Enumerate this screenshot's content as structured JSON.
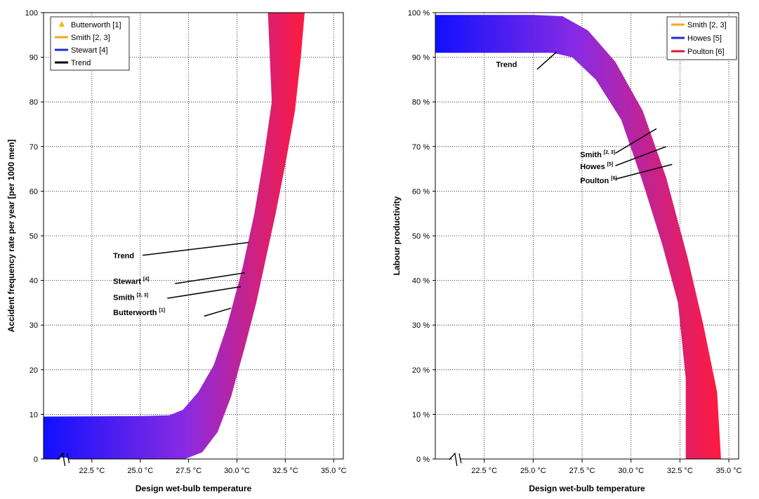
{
  "chart_data": [
    {
      "type": "area",
      "xlabel": "Design wet-bulb temperature",
      "ylabel": "Accident frequency rate per year [per 1000 men]",
      "xlim": [
        20.0,
        35.5
      ],
      "ylim": [
        0,
        100
      ],
      "x_ticks": [
        "22.5 °C",
        "25.0 °C",
        "27.5 °C",
        "30.0 °C",
        "32.5 °C",
        "35.0 °C"
      ],
      "y_ticks": [
        "0",
        "10",
        "20",
        "30",
        "40",
        "50",
        "60",
        "70",
        "80",
        "90",
        "100"
      ],
      "grid": true,
      "axis_break": true,
      "legend": {
        "placement": "top-left",
        "entries": [
          {
            "label": "Butterworth [1]",
            "marker": "triangle",
            "color": "#f2b705"
          },
          {
            "label": "Smith [2, 3]",
            "marker": "line",
            "color": "#f5a623"
          },
          {
            "label": "Stewart [4]",
            "marker": "line",
            "color": "#1f2bd6"
          },
          {
            "label": "Trend",
            "marker": "line",
            "color": "#000000"
          }
        ]
      },
      "band": {
        "color_start": "#1010ff",
        "color_mid": "#8a2be2",
        "color_end": "#ff1a3c",
        "upper": [
          [
            20.0,
            9.5
          ],
          [
            25.0,
            9.6
          ],
          [
            26.5,
            9.8
          ],
          [
            27.2,
            11
          ],
          [
            28.0,
            15
          ],
          [
            28.8,
            21
          ],
          [
            29.5,
            30
          ],
          [
            30.3,
            43
          ],
          [
            30.9,
            55
          ],
          [
            31.4,
            68
          ],
          [
            31.8,
            80
          ],
          [
            31.7,
            90
          ],
          [
            31.6,
            100
          ]
        ],
        "lower": [
          [
            33.5,
            100
          ],
          [
            33.3,
            90
          ],
          [
            33.0,
            78
          ],
          [
            32.5,
            66
          ],
          [
            32.0,
            55
          ],
          [
            31.5,
            45
          ],
          [
            31.0,
            35
          ],
          [
            30.4,
            25
          ],
          [
            29.7,
            14
          ],
          [
            29.0,
            6
          ],
          [
            28.2,
            1.5
          ],
          [
            27.3,
            0
          ],
          [
            20.0,
            0
          ]
        ]
      },
      "annotations": [
        {
          "label": "Trend",
          "sup": "",
          "text_at": [
            23.6,
            45
          ],
          "line_to": [
            30.6,
            48.5
          ]
        },
        {
          "label": "Stewart",
          "sup": "[4]",
          "text_at": [
            23.6,
            39.2
          ],
          "line_from": [
            26.8,
            39.3
          ],
          "line_to": [
            30.4,
            41.7
          ]
        },
        {
          "label": "Smith",
          "sup": "[2, 3]",
          "text_at": [
            23.6,
            35.6
          ],
          "line_from": [
            26.4,
            36.0
          ],
          "line_to": [
            30.2,
            38.6
          ]
        },
        {
          "label": "Butterworth",
          "sup": "[1]",
          "text_at": [
            23.6,
            32.2
          ],
          "line_from": [
            28.3,
            32.0
          ],
          "line_to": [
            29.7,
            33.8
          ]
        }
      ]
    },
    {
      "type": "area",
      "xlabel": "Design wet-bulb temperature",
      "ylabel": "Labour productivity",
      "xlim": [
        20.0,
        35.5
      ],
      "ylim": [
        0,
        100
      ],
      "x_ticks": [
        "22.5 °C",
        "25.0 °C",
        "27.5 °C",
        "30.0 °C",
        "32.5 °C",
        "35.0 °C"
      ],
      "y_ticks": [
        "0 %",
        "10 %",
        "20 %",
        "30 %",
        "40 %",
        "50 %",
        "60 %",
        "70 %",
        "80 %",
        "90 %",
        "100 %"
      ],
      "grid": true,
      "axis_break": true,
      "legend": {
        "placement": "top-right",
        "entries": [
          {
            "label": "Smith [2, 3]",
            "marker": "line",
            "color": "#f5a623"
          },
          {
            "label": "Howes [5]",
            "marker": "line",
            "color": "#1f2bd6"
          },
          {
            "label": "Poulton [6]",
            "marker": "line",
            "color": "#e0142c"
          }
        ]
      },
      "band": {
        "color_start": "#1010ff",
        "color_mid": "#8a2be2",
        "color_end": "#ff1a3c",
        "upper": [
          [
            20.0,
            99.5
          ],
          [
            25.0,
            99.5
          ],
          [
            26.5,
            99.2
          ],
          [
            27.8,
            96
          ],
          [
            29.2,
            89
          ],
          [
            30.6,
            78
          ],
          [
            31.8,
            63
          ],
          [
            32.9,
            45
          ],
          [
            33.7,
            30
          ],
          [
            34.4,
            15
          ],
          [
            34.6,
            0
          ]
        ],
        "lower": [
          [
            32.8,
            0
          ],
          [
            32.8,
            18
          ],
          [
            32.4,
            35
          ],
          [
            31.6,
            48
          ],
          [
            30.6,
            62
          ],
          [
            29.5,
            76
          ],
          [
            28.2,
            85
          ],
          [
            27.0,
            90
          ],
          [
            26.0,
            91
          ],
          [
            20.0,
            91
          ]
        ]
      },
      "annotations": [
        {
          "label": "Trend",
          "sup": "",
          "text_at": [
            23.1,
            87.8
          ],
          "line_from": [
            25.2,
            87.3
          ],
          "line_to": [
            26.2,
            91.2
          ]
        },
        {
          "label": "Smith",
          "sup": "[2, 3]",
          "text_at": [
            27.4,
            67.6
          ],
          "line_from": [
            29.2,
            68.5
          ],
          "line_to": [
            31.3,
            74.0
          ]
        },
        {
          "label": "Howes",
          "sup": "[5]",
          "text_at": [
            27.4,
            64.9
          ],
          "line_from": [
            29.2,
            65.7
          ],
          "line_to": [
            31.8,
            70.0
          ]
        },
        {
          "label": "Poulton",
          "sup": "[6]",
          "text_at": [
            27.4,
            61.8
          ],
          "line_from": [
            29.2,
            62.7
          ],
          "line_to": [
            32.1,
            66.0
          ]
        }
      ]
    }
  ]
}
